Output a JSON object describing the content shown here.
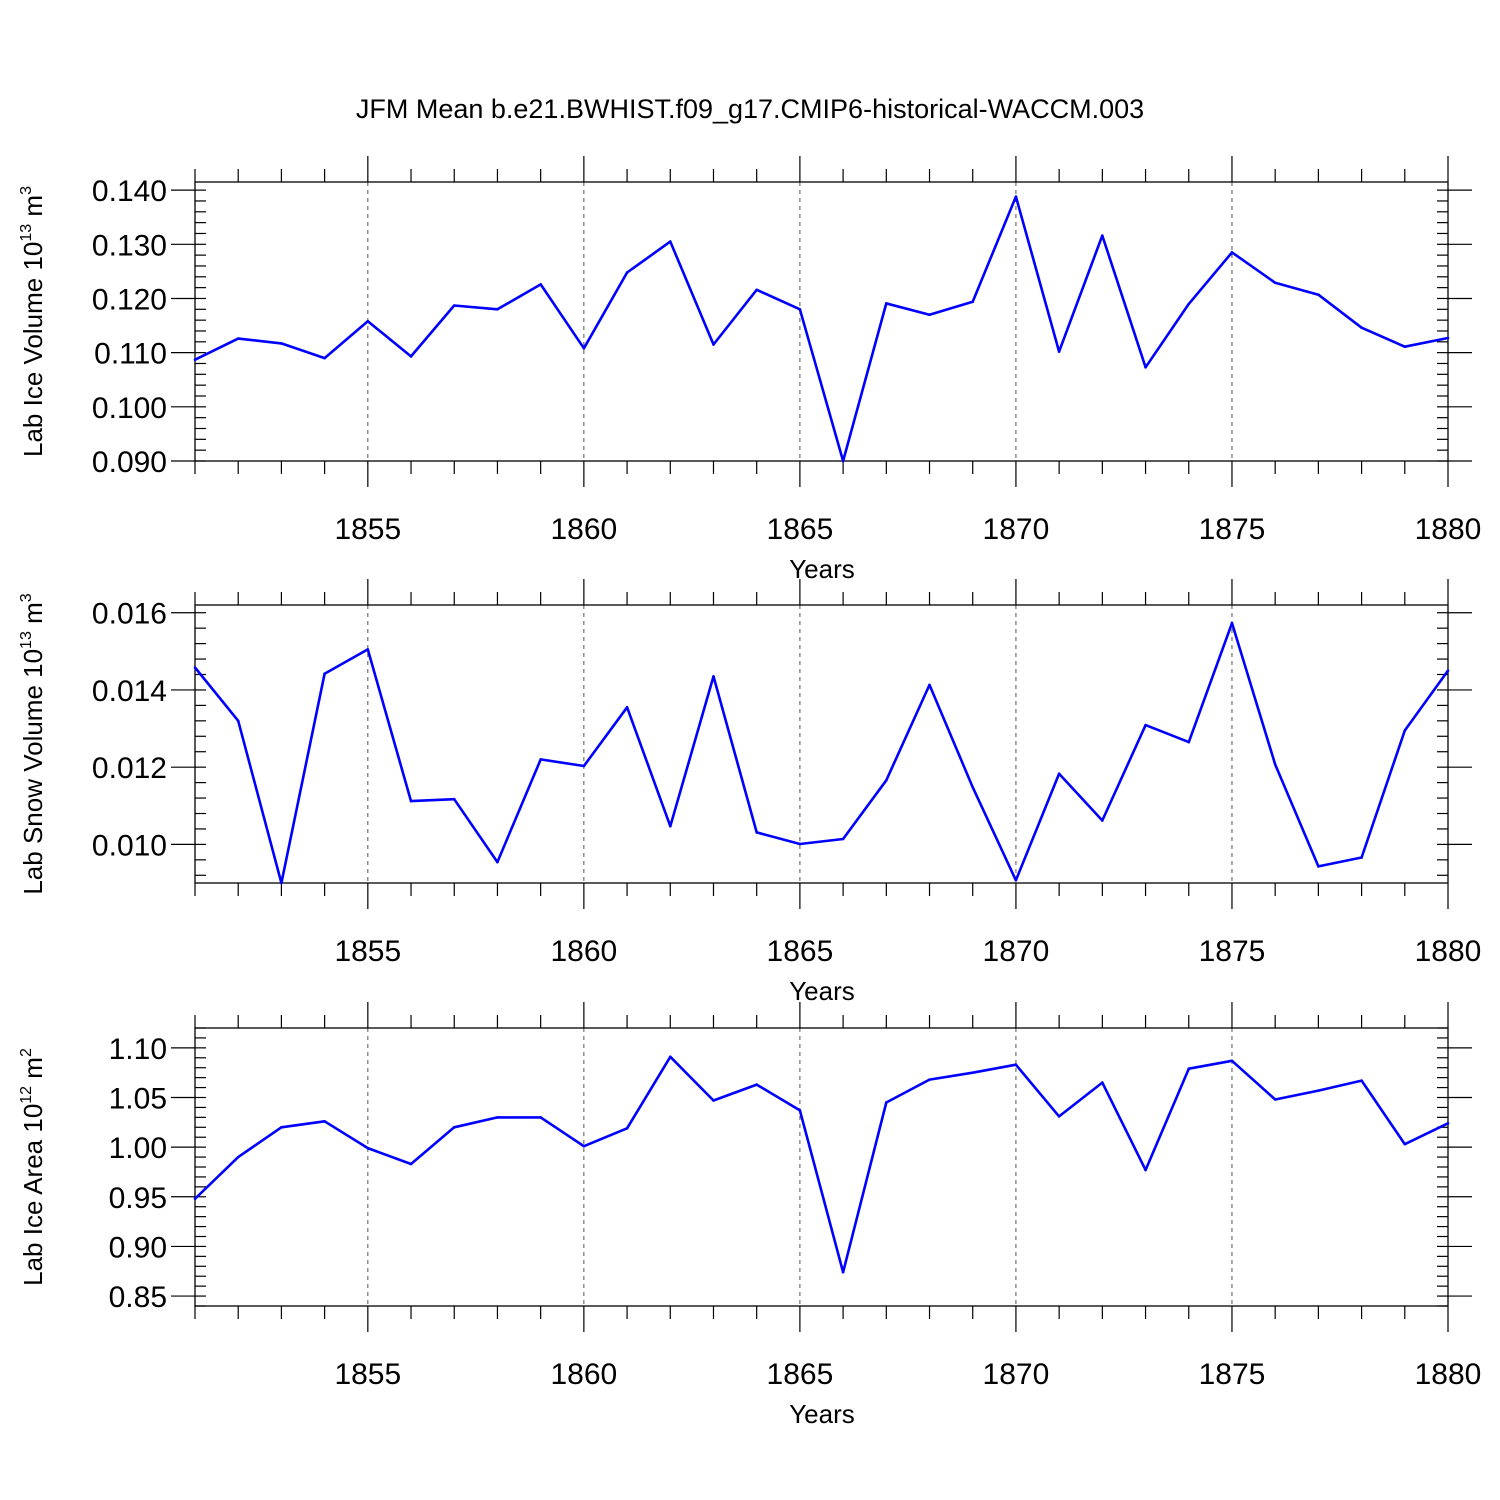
{
  "chart_data": {
    "title": "JFM Mean b.e21.BWHIST.f09_g17.CMIP6-historical-WACCM.003",
    "line_color": "#0000FF",
    "panels": [
      {
        "type": "line",
        "ylabel_main": "Lab Ice Volume 10",
        "ylabel_exp": "13",
        "ylabel_unit": " m",
        "ylabel_unit_exp": "3",
        "xlabel": "Years",
        "xlim": [
          1851,
          1880
        ],
        "ylim": [
          0.09,
          0.1415
        ],
        "yticks": [
          0.09,
          0.1,
          0.11,
          0.12,
          0.13,
          0.14
        ],
        "ytick_labels": [
          "0.090",
          "0.100",
          "0.110",
          "0.120",
          "0.130",
          "0.140"
        ],
        "yminor_step": 0.002,
        "xticks": [
          1855,
          1860,
          1865,
          1870,
          1875,
          1880
        ],
        "xtick_labels": [
          "1855",
          "1860",
          "1865",
          "1870",
          "1875",
          "1880"
        ],
        "x": [
          1851,
          1852,
          1853,
          1854,
          1855,
          1856,
          1857,
          1858,
          1859,
          1860,
          1861,
          1862,
          1863,
          1864,
          1865,
          1866,
          1867,
          1868,
          1869,
          1870,
          1871,
          1872,
          1873,
          1874,
          1875,
          1876,
          1877,
          1878,
          1879,
          1880
        ],
        "values": [
          0.1087,
          0.1126,
          0.1117,
          0.109,
          0.1158,
          0.1093,
          0.1187,
          0.118,
          0.1226,
          0.1108,
          0.1248,
          0.1305,
          0.1115,
          0.1216,
          0.118,
          0.09,
          0.1191,
          0.117,
          0.1194,
          0.1388,
          0.1102,
          0.1316,
          0.1073,
          0.119,
          0.1285,
          0.1229,
          0.1207,
          0.1146,
          0.1111,
          0.1127
        ]
      },
      {
        "type": "line",
        "ylabel_main": "Lab Snow Volume 10",
        "ylabel_exp": "13",
        "ylabel_unit": " m",
        "ylabel_unit_exp": "3",
        "xlabel": "Years",
        "xlim": [
          1851,
          1880
        ],
        "ylim": [
          0.009,
          0.0162
        ],
        "yticks": [
          0.01,
          0.012,
          0.014,
          0.016
        ],
        "ytick_labels": [
          "0.010",
          "0.012",
          "0.014",
          "0.016"
        ],
        "yminor_step": 0.0004,
        "xticks": [
          1855,
          1860,
          1865,
          1870,
          1875,
          1880
        ],
        "xtick_labels": [
          "1855",
          "1860",
          "1865",
          "1870",
          "1875",
          "1880"
        ],
        "x": [
          1851,
          1852,
          1853,
          1854,
          1855,
          1856,
          1857,
          1858,
          1859,
          1860,
          1861,
          1862,
          1863,
          1864,
          1865,
          1866,
          1867,
          1868,
          1869,
          1870,
          1871,
          1872,
          1873,
          1874,
          1875,
          1876,
          1877,
          1878,
          1879,
          1880
        ],
        "values": [
          0.01458,
          0.0132,
          0.009,
          0.01442,
          0.01505,
          0.01112,
          0.01117,
          0.00954,
          0.0122,
          0.01203,
          0.01355,
          0.01047,
          0.01435,
          0.01031,
          0.01001,
          0.01014,
          0.01166,
          0.01413,
          0.01148,
          0.00907,
          0.01183,
          0.01062,
          0.01309,
          0.01265,
          0.01573,
          0.01207,
          0.00943,
          0.00966,
          0.01295,
          0.0145
        ]
      },
      {
        "type": "line",
        "ylabel_main": "Lab Ice Area 10",
        "ylabel_exp": "12",
        "ylabel_unit": " m",
        "ylabel_unit_exp": "2",
        "xlabel": "Years",
        "xlim": [
          1851,
          1880
        ],
        "ylim": [
          0.84,
          1.12
        ],
        "yticks": [
          0.85,
          0.9,
          0.95,
          1.0,
          1.05,
          1.1
        ],
        "ytick_labels": [
          "0.85",
          "0.90",
          "0.95",
          "1.00",
          "1.05",
          "1.10"
        ],
        "yminor_step": 0.01,
        "xticks": [
          1855,
          1860,
          1865,
          1870,
          1875,
          1880
        ],
        "xtick_labels": [
          "1855",
          "1860",
          "1865",
          "1870",
          "1875",
          "1880"
        ],
        "x": [
          1851,
          1852,
          1853,
          1854,
          1855,
          1856,
          1857,
          1858,
          1859,
          1860,
          1861,
          1862,
          1863,
          1864,
          1865,
          1866,
          1867,
          1868,
          1869,
          1870,
          1871,
          1872,
          1873,
          1874,
          1875,
          1876,
          1877,
          1878,
          1879,
          1880
        ],
        "values": [
          0.948,
          0.99,
          1.02,
          1.026,
          0.999,
          0.983,
          1.02,
          1.03,
          1.03,
          1.001,
          1.019,
          1.091,
          1.047,
          1.063,
          1.037,
          0.874,
          1.045,
          1.068,
          1.075,
          1.083,
          1.031,
          1.065,
          0.977,
          1.079,
          1.087,
          1.048,
          1.057,
          1.067,
          1.003,
          1.024
        ]
      }
    ]
  }
}
